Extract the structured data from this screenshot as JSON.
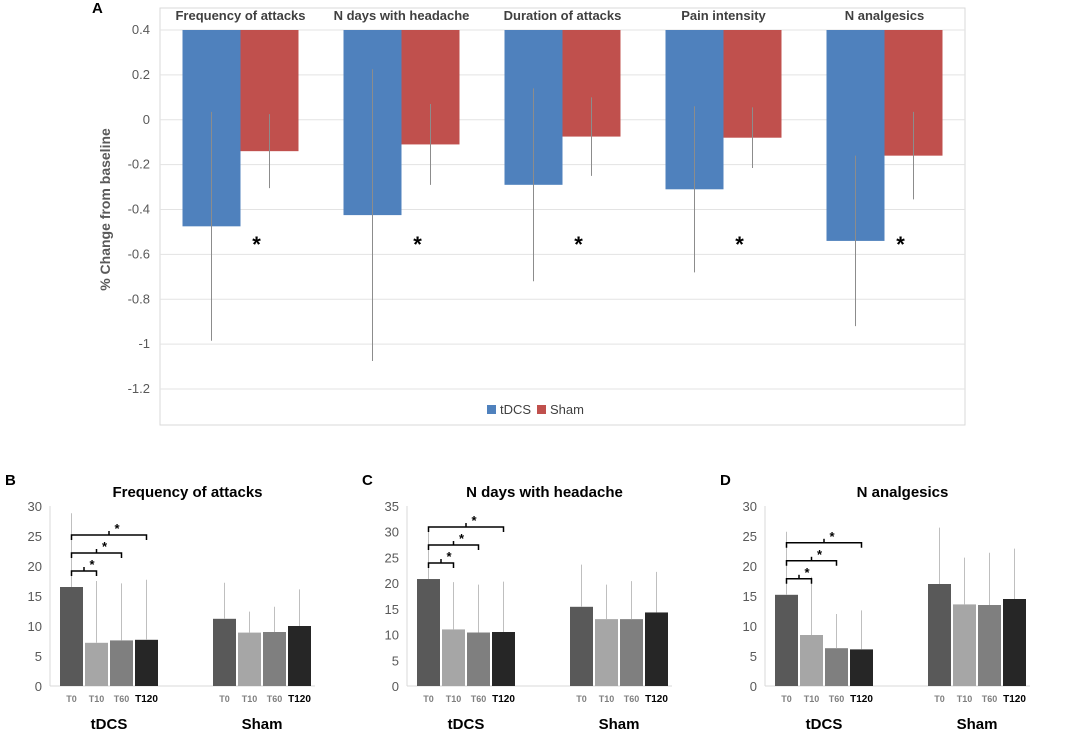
{
  "chart_data": [
    {
      "panel": "A",
      "type": "bar",
      "categories": [
        "Frequency of attacks",
        "N days with headache",
        "Duration of attacks",
        "Pain intensity",
        "N analgesics"
      ],
      "series": [
        {
          "name": "tDCS",
          "color": "#4f81bd",
          "values": [
            -0.475,
            -0.425,
            -0.29,
            -0.31,
            -0.54
          ],
          "error": [
            0.51,
            0.65,
            0.43,
            0.37,
            0.38
          ]
        },
        {
          "name": "Sham",
          "color": "#c0504d",
          "values": [
            -0.14,
            -0.11,
            -0.075,
            -0.08,
            -0.16
          ],
          "error": [
            0.165,
            0.18,
            0.175,
            0.135,
            0.195
          ]
        }
      ],
      "significance": [
        "*",
        "*",
        "*",
        "*",
        "*"
      ],
      "ylabel": "% Change from baseline",
      "xlabel": "",
      "ylim": [
        -1.2,
        0.4
      ],
      "yticks": [
        "0.4",
        "0.2",
        "0",
        "-0.2",
        "-0.4",
        "-0.6",
        "-0.8",
        "-1",
        "-1.2"
      ],
      "legend": [
        "tDCS",
        "Sham"
      ],
      "legend_position": "bottom"
    },
    {
      "panel": "B",
      "type": "bar",
      "title": "Frequency of attacks",
      "groups": [
        "tDCS",
        "Sham"
      ],
      "timepoints": [
        "T0",
        "T10",
        "T60",
        "T120"
      ],
      "colors": [
        "#595959",
        "#a6a6a6",
        "#7f7f7f",
        "#262626"
      ],
      "values": [
        [
          16.5,
          7.2,
          7.6,
          7.7
        ],
        [
          11.2,
          8.9,
          9.0,
          10.0
        ]
      ],
      "error": [
        [
          12.3,
          10.3,
          9.5,
          10.0
        ],
        [
          6.0,
          3.5,
          4.2,
          6.1
        ]
      ],
      "significance": [
        "*",
        "*",
        "*"
      ],
      "ylim": [
        0,
        30
      ],
      "yticks": [
        "30",
        "25",
        "20",
        "15",
        "10",
        "5",
        "0"
      ]
    },
    {
      "panel": "C",
      "type": "bar",
      "title": "N days with headache",
      "groups": [
        "tDCS",
        "Sham"
      ],
      "timepoints": [
        "T0",
        "T10",
        "T60",
        "T120"
      ],
      "colors": [
        "#595959",
        "#a6a6a6",
        "#7f7f7f",
        "#262626"
      ],
      "values": [
        [
          20.8,
          11.0,
          10.4,
          10.5
        ],
        [
          15.4,
          13.0,
          13.0,
          14.3
        ]
      ],
      "error": [
        [
          10.2,
          9.2,
          9.3,
          9.8
        ],
        [
          8.2,
          6.7,
          7.4,
          7.9
        ]
      ],
      "significance": [
        "*",
        "*",
        "*"
      ],
      "ylim": [
        0,
        35
      ],
      "yticks": [
        "35",
        "30",
        "25",
        "20",
        "15",
        "10",
        "5",
        "0"
      ]
    },
    {
      "panel": "D",
      "type": "bar",
      "title": "N analgesics",
      "groups": [
        "tDCS",
        "Sham"
      ],
      "timepoints": [
        "T0",
        "T10",
        "T60",
        "T120"
      ],
      "colors": [
        "#595959",
        "#a6a6a6",
        "#7f7f7f",
        "#262626"
      ],
      "values": [
        [
          15.2,
          8.5,
          6.3,
          6.1
        ],
        [
          17.0,
          13.6,
          13.5,
          14.5
        ]
      ],
      "error": [
        [
          10.5,
          9.7,
          5.7,
          6.5
        ],
        [
          9.4,
          7.8,
          8.7,
          8.4
        ]
      ],
      "significance": [
        "*",
        "*",
        "*"
      ],
      "ylim": [
        0,
        30
      ],
      "yticks": [
        "30",
        "25",
        "20",
        "15",
        "10",
        "5",
        "0"
      ]
    }
  ]
}
